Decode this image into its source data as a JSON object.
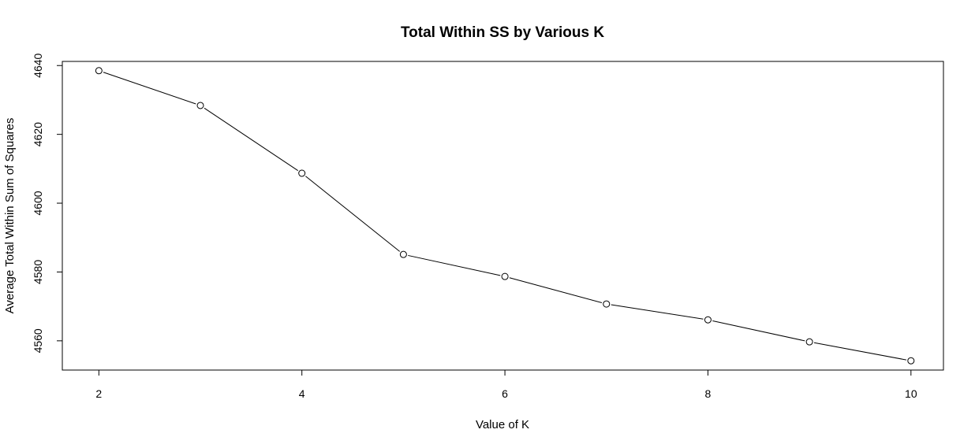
{
  "chart_data": {
    "type": "line",
    "title": "Total Within SS by Various K",
    "xlabel": "Value of K",
    "ylabel": "Average Total Within Sum of Squares",
    "x": [
      2,
      3,
      4,
      5,
      6,
      7,
      8,
      9,
      10
    ],
    "series": [
      {
        "values": [
          4638.5,
          4628.4,
          4608.7,
          4585.1,
          4578.7,
          4570.7,
          4566.1,
          4559.7,
          4554.2
        ]
      }
    ],
    "x_ticks": [
      "2",
      "4",
      "6",
      "8",
      "10"
    ],
    "y_ticks": [
      "4560",
      "4580",
      "4600",
      "4620",
      "4640"
    ],
    "xlim": [
      1.64,
      10.32
    ],
    "ylim": [
      4551.5,
      4641.2
    ],
    "grid": false,
    "markers": "open-circle"
  }
}
